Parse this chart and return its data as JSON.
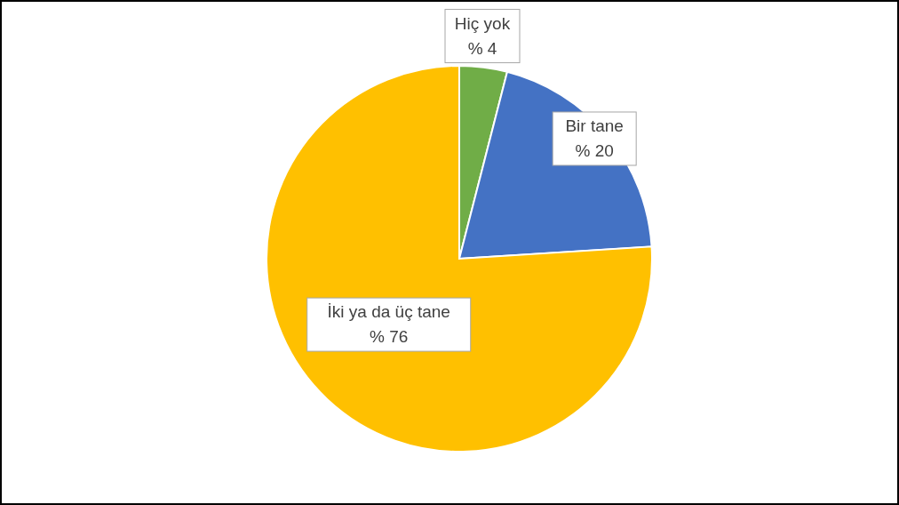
{
  "chart_data": {
    "type": "pie",
    "categories": [
      "Hiç yok",
      "Bir tane",
      "İki ya da üç tane"
    ],
    "values": [
      4,
      20,
      76
    ],
    "colors": [
      "#70ad47",
      "#4472c4",
      "#ffc000"
    ],
    "value_labels": [
      "% 4",
      "% 20",
      "% 76"
    ]
  }
}
